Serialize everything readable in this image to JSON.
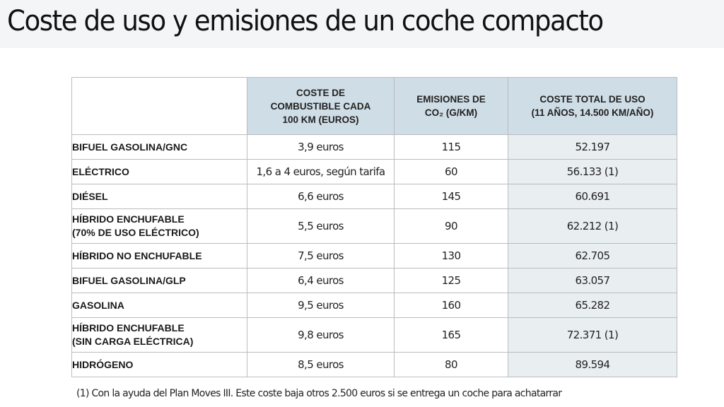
{
  "title": "Coste de uso y emisiones de un coche compacto",
  "table": {
    "headers": [
      "",
      "COSTE DE COMBUSTIBLE CADA 100 KM (EUROS)",
      "EMISIONES DE CO₂ (G/KM)",
      "COSTE TOTAL DE USO (11 AÑOS, 14.500 KM/AÑO)"
    ],
    "header_lines": {
      "fuel_cost": [
        "COSTE DE",
        "COMBUSTIBLE CADA",
        "100 KM (EUROS)"
      ],
      "emissions": [
        "EMISIONES DE",
        "CO₂ (G/KM)"
      ],
      "total_cost": [
        "COSTE TOTAL DE USO",
        "(11 AÑOS, 14.500 KM/AÑO)"
      ]
    },
    "rows": [
      {
        "name_lines": [
          "BIFUEL GASOLINA/GNC"
        ],
        "fuel_cost": "3,9 euros",
        "emissions": "115",
        "total_cost": "52.197"
      },
      {
        "name_lines": [
          "ELÉCTRICO"
        ],
        "fuel_cost": "1,6 a 4 euros, según tarifa",
        "emissions": "60",
        "total_cost": "56.133 (1)"
      },
      {
        "name_lines": [
          "DIÉSEL"
        ],
        "fuel_cost": "6,6 euros",
        "emissions": "145",
        "total_cost": "60.691"
      },
      {
        "name_lines": [
          "HÍBRIDO ENCHUFABLE",
          "(70% DE USO ELÉCTRICO)"
        ],
        "fuel_cost": "5,5 euros",
        "emissions": "90",
        "total_cost": "62.212 (1)"
      },
      {
        "name_lines": [
          "HÍBRIDO NO ENCHUFABLE"
        ],
        "fuel_cost": "7,5 euros",
        "emissions": "130",
        "total_cost": "62.705"
      },
      {
        "name_lines": [
          "BIFUEL GASOLINA/GLP"
        ],
        "fuel_cost": "6,4 euros",
        "emissions": "125",
        "total_cost": "63.057"
      },
      {
        "name_lines": [
          "GASOLINA"
        ],
        "fuel_cost": "9,5 euros",
        "emissions": "160",
        "total_cost": "65.282"
      },
      {
        "name_lines": [
          "HÍBRIDO ENCHUFABLE",
          "(SIN CARGA ELÉCTRICA)"
        ],
        "fuel_cost": "9,8 euros",
        "emissions": "165",
        "total_cost": "72.371 (1)"
      },
      {
        "name_lines": [
          "HIDRÓGENO"
        ],
        "fuel_cost": "8,5 euros",
        "emissions": "80",
        "total_cost": "89.594"
      }
    ]
  },
  "footnote": "(1) Con la ayuda del Plan Moves III. Este coste baja otros 2.500 euros si se entrega un coche para achatarrar",
  "colors": {
    "title_band": "#f4f5f6",
    "header_bg": "#cfdde6",
    "total_col_bg": "#e9eef1",
    "border": "#b9bcbf"
  }
}
